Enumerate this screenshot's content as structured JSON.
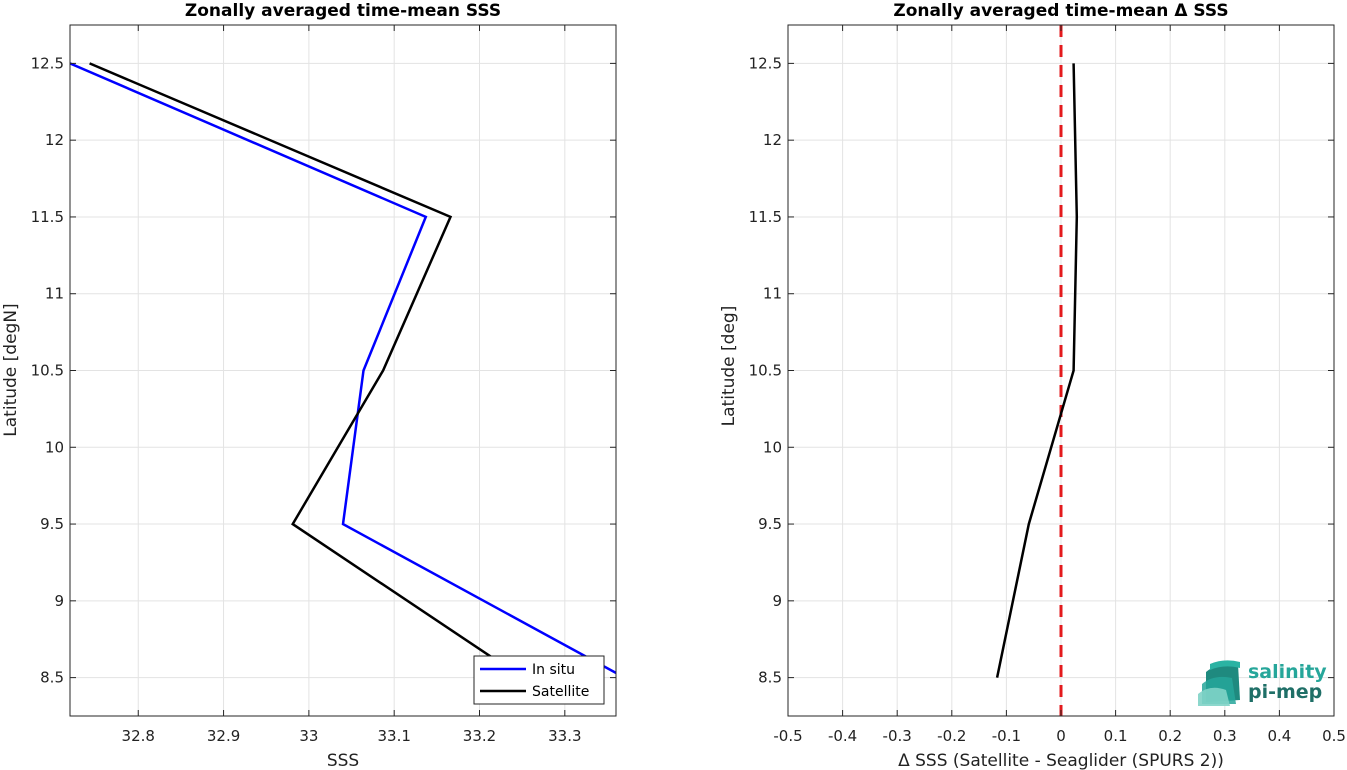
{
  "chart_data": [
    {
      "type": "line",
      "title": "Zonally averaged time-mean SSS",
      "xlabel": "SSS",
      "ylabel": "Latitude [degN]",
      "xlim": [
        32.72,
        33.36
      ],
      "ylim": [
        8.25,
        12.75
      ],
      "xticks": [
        32.8,
        32.9,
        33.0,
        33.1,
        33.2,
        33.3
      ],
      "xtick_labels": [
        "32.8",
        "32.9",
        "33",
        "33.1",
        "33.2",
        "33.3"
      ],
      "yticks": [
        8.5,
        9,
        9.5,
        10,
        10.5,
        11,
        11.5,
        12,
        12.5
      ],
      "ytick_labels": [
        "8.5",
        "9",
        "9.5",
        "10",
        "10.5",
        "11",
        "11.5",
        "12",
        "12.5"
      ],
      "grid": true,
      "legend_position": "bottom-right",
      "series": [
        {
          "name": "In situ",
          "color": "#0000ff",
          "lat": [
            12.5,
            11.5,
            10.5,
            9.5,
            8.5
          ],
          "sss": [
            32.72,
            33.137,
            33.064,
            33.04,
            33.37
          ]
        },
        {
          "name": "Satellite",
          "color": "#000000",
          "lat": [
            12.5,
            11.5,
            10.5,
            9.5,
            8.5
          ],
          "sss": [
            32.743,
            33.166,
            33.087,
            32.981,
            33.25
          ]
        }
      ]
    },
    {
      "type": "line",
      "title": "Zonally averaged time-mean Δ SSS",
      "xlabel": "Δ SSS (Satellite - Seaglider (SPURS 2))",
      "ylabel": "Latitude [deg]",
      "xlim": [
        -0.5,
        0.5
      ],
      "ylim": [
        8.25,
        12.75
      ],
      "xticks": [
        -0.5,
        -0.4,
        -0.3,
        -0.2,
        -0.1,
        0,
        0.1,
        0.2,
        0.3,
        0.4,
        0.5
      ],
      "xtick_labels": [
        "-0.5",
        "-0.4",
        "-0.3",
        "-0.2",
        "-0.1",
        "0",
        "0.1",
        "0.2",
        "0.3",
        "0.4",
        "0.5"
      ],
      "yticks": [
        8.5,
        9,
        9.5,
        10,
        10.5,
        11,
        11.5,
        12,
        12.5
      ],
      "ytick_labels": [
        "8.5",
        "9",
        "9.5",
        "10",
        "10.5",
        "11",
        "11.5",
        "12",
        "12.5"
      ],
      "grid": true,
      "series": [
        {
          "color": "#000000",
          "lat": [
            12.5,
            11.5,
            10.5,
            9.5,
            8.5
          ],
          "delta": [
            0.023,
            0.029,
            0.023,
            -0.059,
            -0.117
          ]
        }
      ],
      "reference_line": {
        "x": 0,
        "color": "#e31a1c",
        "style": "dashed"
      }
    }
  ],
  "logo": {
    "line1": "salinity",
    "line2": "pi-mep",
    "color1": "#26a69a",
    "color2": "#1f6f67"
  }
}
